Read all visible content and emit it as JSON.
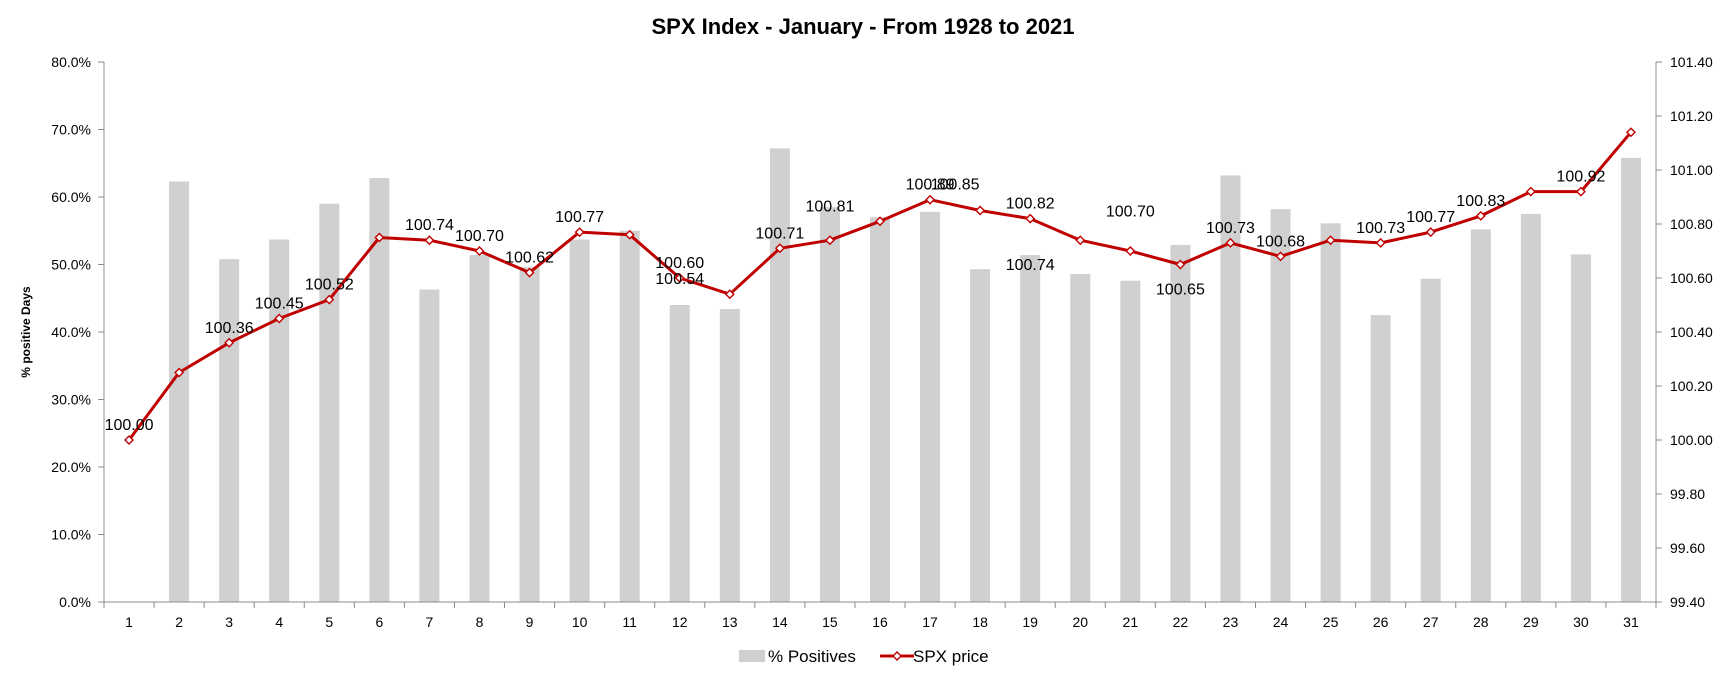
{
  "chart_data": {
    "type": "bar",
    "title": "SPX Index - January - From 1928 to 2021",
    "ylabel": "% positive Days",
    "y2label": "",
    "categories": [
      "1",
      "2",
      "3",
      "4",
      "5",
      "6",
      "7",
      "8",
      "9",
      "10",
      "11",
      "12",
      "13",
      "14",
      "15",
      "16",
      "17",
      "18",
      "19",
      "20",
      "21",
      "22",
      "23",
      "24",
      "25",
      "26",
      "27",
      "28",
      "29",
      "30",
      "31"
    ],
    "ylim": [
      0,
      80
    ],
    "y2lim": [
      99.4,
      101.4
    ],
    "y_ticks": [
      "0.0%",
      "10.0%",
      "20.0%",
      "30.0%",
      "40.0%",
      "50.0%",
      "60.0%",
      "70.0%",
      "80.0%"
    ],
    "y2_ticks": [
      "99.40",
      "99.60",
      "99.80",
      "100.00",
      "100.20",
      "100.40",
      "100.60",
      "100.80",
      "101.00",
      "101.20",
      "101.40"
    ],
    "grid": false,
    "legend_position": "bottom",
    "series": [
      {
        "name": "% Positives",
        "type": "bar",
        "axis": "left",
        "color": "#d0d0d0",
        "values": [
          0,
          62.3,
          50.8,
          53.7,
          59.0,
          62.8,
          46.3,
          51.4,
          49.6,
          53.7,
          55.0,
          44.0,
          43.4,
          67.2,
          58.5,
          57.0,
          57.8,
          49.3,
          51.4,
          48.6,
          47.6,
          52.9,
          63.2,
          58.2,
          56.1,
          42.5,
          47.9,
          55.2,
          57.5,
          51.5,
          65.8
        ]
      },
      {
        "name": "SPX price",
        "type": "line",
        "axis": "right",
        "color": "#c00000",
        "values": [
          100.0,
          100.25,
          100.36,
          100.45,
          100.52,
          100.75,
          100.74,
          100.7,
          100.62,
          100.77,
          100.76,
          100.6,
          100.54,
          100.71,
          100.74,
          100.81,
          100.89,
          100.85,
          100.82,
          100.74,
          100.7,
          100.65,
          100.73,
          100.68,
          100.74,
          100.73,
          100.77,
          100.83,
          100.92,
          100.92,
          101.14
        ]
      }
    ],
    "data_labels": [
      {
        "text": "100.00",
        "x": 1,
        "y": 100.0,
        "pos": "above"
      },
      {
        "text": "100.36",
        "x": 3,
        "y": 100.36,
        "pos": "above"
      },
      {
        "text": "100.45",
        "x": 4,
        "y": 100.45,
        "pos": "above"
      },
      {
        "text": "100.52",
        "x": 5,
        "y": 100.52,
        "pos": "above"
      },
      {
        "text": "100.74",
        "x": 7,
        "y": 100.74,
        "pos": "above"
      },
      {
        "text": "100.70",
        "x": 8,
        "y": 100.7,
        "pos": "above"
      },
      {
        "text": "100.62",
        "x": 9,
        "y": 100.62,
        "pos": "above"
      },
      {
        "text": "100.77",
        "x": 10,
        "y": 100.77,
        "pos": "above"
      },
      {
        "text": "100.60",
        "x": 12,
        "y": 100.6,
        "pos": "above"
      },
      {
        "text": "100.54",
        "x": 12,
        "y": 100.54,
        "pos": "above"
      },
      {
        "text": "100.71",
        "x": 14,
        "y": 100.71,
        "pos": "above"
      },
      {
        "text": "100.81",
        "x": 15,
        "y": 100.81,
        "pos": "above"
      },
      {
        "text": "100.89",
        "x": 17,
        "y": 100.89,
        "pos": "above"
      },
      {
        "text": "100.85",
        "x": 17.5,
        "y": 100.89,
        "pos": "above"
      },
      {
        "text": "100.82",
        "x": 19,
        "y": 100.82,
        "pos": "above"
      },
      {
        "text": "100.74",
        "x": 19,
        "y": 100.74,
        "pos": "below"
      },
      {
        "text": "100.70",
        "x": 21,
        "y": 100.79,
        "pos": "above"
      },
      {
        "text": "100.65",
        "x": 22,
        "y": 100.65,
        "pos": "below"
      },
      {
        "text": "100.73",
        "x": 23,
        "y": 100.73,
        "pos": "above"
      },
      {
        "text": "100.68",
        "x": 24,
        "y": 100.68,
        "pos": "above"
      },
      {
        "text": "100.73",
        "x": 26,
        "y": 100.73,
        "pos": "above"
      },
      {
        "text": "100.77",
        "x": 27,
        "y": 100.77,
        "pos": "above"
      },
      {
        "text": "100.83",
        "x": 28,
        "y": 100.83,
        "pos": "above"
      },
      {
        "text": "100.92",
        "x": 30,
        "y": 100.92,
        "pos": "above"
      }
    ]
  }
}
